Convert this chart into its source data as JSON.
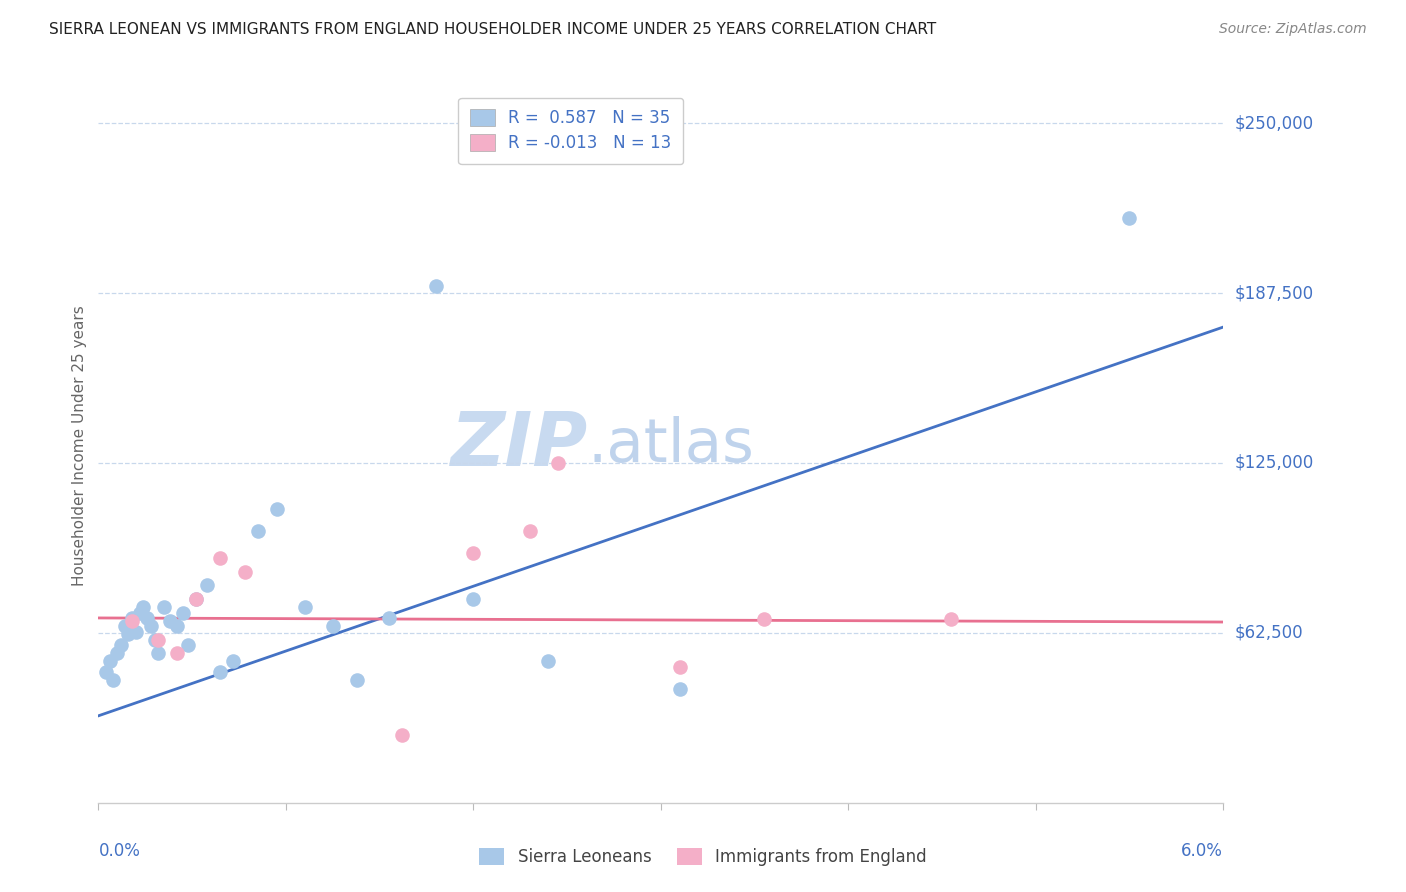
{
  "title": "SIERRA LEONEAN VS IMMIGRANTS FROM ENGLAND HOUSEHOLDER INCOME UNDER 25 YEARS CORRELATION CHART",
  "source": "Source: ZipAtlas.com",
  "ylabel": "Householder Income Under 25 years",
  "xlim": [
    0.0,
    6.0
  ],
  "ylim": [
    0,
    262500
  ],
  "yticks": [
    0,
    62500,
    125000,
    187500,
    250000
  ],
  "ytick_labels": [
    "",
    "$62,500",
    "$125,000",
    "$187,500",
    "$250,000"
  ],
  "xticks": [
    0.0,
    1.0,
    2.0,
    3.0,
    4.0,
    5.0,
    6.0
  ],
  "blue_R": "0.587",
  "blue_N": "35",
  "pink_R": "-0.013",
  "pink_N": "13",
  "blue_color": "#a8c8e8",
  "pink_color": "#f4afc8",
  "blue_line_color": "#4472c4",
  "pink_line_color": "#e87090",
  "label_color": "#4472c4",
  "title_color": "#222222",
  "source_color": "#888888",
  "grid_color": "#c8d8ec",
  "sierra_leoneans_x": [
    0.04,
    0.06,
    0.08,
    0.1,
    0.12,
    0.14,
    0.16,
    0.18,
    0.2,
    0.22,
    0.24,
    0.26,
    0.28,
    0.3,
    0.32,
    0.35,
    0.38,
    0.42,
    0.45,
    0.48,
    0.52,
    0.58,
    0.65,
    0.72,
    0.85,
    0.95,
    1.1,
    1.25,
    1.38,
    1.55,
    1.8,
    2.0,
    2.4,
    3.1,
    5.5
  ],
  "sierra_leoneans_y": [
    48000,
    52000,
    45000,
    55000,
    58000,
    65000,
    62000,
    68000,
    63000,
    70000,
    72000,
    68000,
    65000,
    60000,
    55000,
    72000,
    67000,
    65000,
    70000,
    58000,
    75000,
    80000,
    48000,
    52000,
    100000,
    108000,
    72000,
    65000,
    45000,
    68000,
    190000,
    75000,
    52000,
    42000,
    215000
  ],
  "england_x": [
    0.18,
    0.32,
    0.42,
    0.65,
    0.78,
    1.62,
    2.0,
    2.3,
    2.45,
    3.55,
    4.55,
    3.1,
    0.52
  ],
  "england_y": [
    67000,
    60000,
    55000,
    90000,
    85000,
    25000,
    92000,
    100000,
    125000,
    67500,
    67500,
    50000,
    75000
  ],
  "blue_trend_x0": 0.0,
  "blue_trend_y0": 32000,
  "blue_trend_x1": 6.0,
  "blue_trend_y1": 175000,
  "pink_trend_x0": 0.0,
  "pink_trend_y0": 68000,
  "pink_trend_x1": 6.0,
  "pink_trend_y1": 66500,
  "watermark_zip_color": "#c8daf0",
  "watermark_atlas_color": "#b0c8e8"
}
